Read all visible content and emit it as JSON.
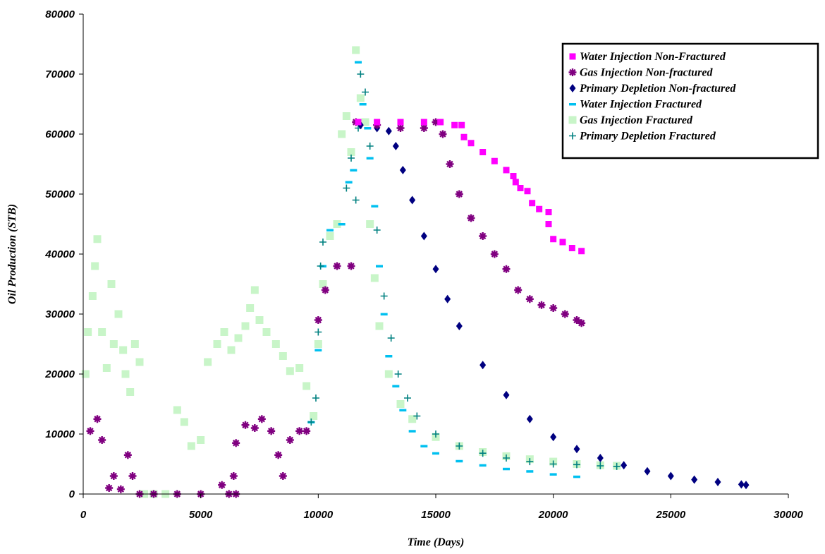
{
  "chart_data": {
    "type": "scatter",
    "title": "",
    "xlabel": "Time (Days)",
    "ylabel": "Oil Production (STB)",
    "xlim": [
      0,
      30000
    ],
    "ylim": [
      0,
      80000
    ],
    "xticks": [
      "0",
      "5000",
      "10000",
      "15000",
      "20000",
      "25000",
      "30000"
    ],
    "yticks": [
      "0",
      "10000",
      "20000",
      "30000",
      "40000",
      "50000",
      "60000",
      "70000",
      "80000"
    ],
    "grid": false,
    "legend_position": "top-right",
    "series": [
      {
        "name": "Water Injection Non-Fractured",
        "marker": "square",
        "color": "#ff00ff",
        "points": [
          [
            11700,
            62000
          ],
          [
            12500,
            62000
          ],
          [
            13500,
            62000
          ],
          [
            14500,
            62000
          ],
          [
            15200,
            62000
          ],
          [
            15800,
            61500
          ],
          [
            16100,
            61500
          ],
          [
            16200,
            59500
          ],
          [
            16500,
            58500
          ],
          [
            17000,
            57000
          ],
          [
            17500,
            55500
          ],
          [
            18000,
            54000
          ],
          [
            18300,
            53000
          ],
          [
            18400,
            52000
          ],
          [
            18600,
            51000
          ],
          [
            18900,
            50500
          ],
          [
            19100,
            48500
          ],
          [
            19400,
            47500
          ],
          [
            19800,
            47000
          ],
          [
            19800,
            45000
          ],
          [
            20000,
            42500
          ],
          [
            20400,
            42000
          ],
          [
            20800,
            41000
          ],
          [
            21200,
            40500
          ]
        ]
      },
      {
        "name": "Gas Injection Non-fractured",
        "marker": "star",
        "color": "#800080",
        "points": [
          [
            300,
            10500
          ],
          [
            600,
            12500
          ],
          [
            800,
            9000
          ],
          [
            1100,
            1000
          ],
          [
            1300,
            3000
          ],
          [
            1600,
            800
          ],
          [
            1900,
            6500
          ],
          [
            2100,
            3000
          ],
          [
            2400,
            0
          ],
          [
            3000,
            0
          ],
          [
            4000,
            0
          ],
          [
            5000,
            0
          ],
          [
            5900,
            1500
          ],
          [
            6200,
            0
          ],
          [
            6500,
            0
          ],
          [
            6400,
            3000
          ],
          [
            6500,
            8500
          ],
          [
            6900,
            11500
          ],
          [
            7300,
            11000
          ],
          [
            7600,
            12500
          ],
          [
            8000,
            10500
          ],
          [
            8300,
            6500
          ],
          [
            8500,
            3000
          ],
          [
            8800,
            9000
          ],
          [
            9200,
            10500
          ],
          [
            9500,
            10500
          ],
          [
            10000,
            29000
          ],
          [
            10300,
            34000
          ],
          [
            10800,
            38000
          ],
          [
            11400,
            38000
          ],
          [
            11600,
            62000
          ],
          [
            12500,
            61500
          ],
          [
            13500,
            61000
          ],
          [
            14500,
            61000
          ],
          [
            15000,
            62000
          ],
          [
            15300,
            60000
          ],
          [
            15600,
            55000
          ],
          [
            16000,
            50000
          ],
          [
            16500,
            46000
          ],
          [
            17000,
            43000
          ],
          [
            17500,
            40000
          ],
          [
            18000,
            37500
          ],
          [
            18500,
            34000
          ],
          [
            19000,
            32500
          ],
          [
            19500,
            31500
          ],
          [
            20000,
            31000
          ],
          [
            20500,
            30000
          ],
          [
            21000,
            29000
          ],
          [
            21200,
            28500
          ]
        ]
      },
      {
        "name": "Primary Depletion Non-fractured",
        "marker": "diamond",
        "color": "#000080",
        "points": [
          [
            11800,
            61500
          ],
          [
            12500,
            61000
          ],
          [
            13000,
            60500
          ],
          [
            13300,
            58000
          ],
          [
            13600,
            54000
          ],
          [
            14000,
            49000
          ],
          [
            14500,
            43000
          ],
          [
            15000,
            37500
          ],
          [
            15500,
            32500
          ],
          [
            16000,
            28000
          ],
          [
            17000,
            21500
          ],
          [
            18000,
            16500
          ],
          [
            19000,
            12500
          ],
          [
            20000,
            9500
          ],
          [
            21000,
            7500
          ],
          [
            22000,
            6000
          ],
          [
            23000,
            4800
          ],
          [
            24000,
            3800
          ],
          [
            25000,
            3000
          ],
          [
            26000,
            2400
          ],
          [
            27000,
            2000
          ],
          [
            28000,
            1600
          ],
          [
            28200,
            1500
          ]
        ]
      },
      {
        "name": "Water Injection Fractured",
        "marker": "dash",
        "color": "#00c0f0",
        "points": [
          [
            9700,
            12000
          ],
          [
            10000,
            24000
          ],
          [
            10200,
            38000
          ],
          [
            10500,
            44000
          ],
          [
            11000,
            45000
          ],
          [
            11300,
            52000
          ],
          [
            11500,
            54000
          ],
          [
            11700,
            72000
          ],
          [
            11900,
            65000
          ],
          [
            12100,
            61000
          ],
          [
            12200,
            56000
          ],
          [
            12400,
            48000
          ],
          [
            12600,
            38000
          ],
          [
            12800,
            30000
          ],
          [
            13000,
            23000
          ],
          [
            13300,
            18000
          ],
          [
            13600,
            14000
          ],
          [
            14000,
            10500
          ],
          [
            14500,
            8000
          ],
          [
            15000,
            6800
          ],
          [
            16000,
            5500
          ],
          [
            17000,
            4800
          ],
          [
            18000,
            4200
          ],
          [
            19000,
            3800
          ],
          [
            20000,
            3300
          ],
          [
            21000,
            2900
          ]
        ]
      },
      {
        "name": "Gas Injection Fractured",
        "marker": "square",
        "color": "#c8f5c8",
        "points": [
          [
            100,
            20000
          ],
          [
            200,
            27000
          ],
          [
            400,
            33000
          ],
          [
            500,
            38000
          ],
          [
            600,
            42500
          ],
          [
            800,
            27000
          ],
          [
            1000,
            21000
          ],
          [
            1200,
            35000
          ],
          [
            1300,
            25000
          ],
          [
            1500,
            30000
          ],
          [
            1700,
            24000
          ],
          [
            1800,
            20000
          ],
          [
            2000,
            17000
          ],
          [
            2200,
            25000
          ],
          [
            2400,
            22000
          ],
          [
            2600,
            0
          ],
          [
            3000,
            0
          ],
          [
            3500,
            0
          ],
          [
            4000,
            14000
          ],
          [
            4300,
            12000
          ],
          [
            4600,
            8000
          ],
          [
            5000,
            9000
          ],
          [
            5300,
            22000
          ],
          [
            5700,
            25000
          ],
          [
            6000,
            27000
          ],
          [
            6300,
            24000
          ],
          [
            6600,
            26000
          ],
          [
            6900,
            28000
          ],
          [
            7100,
            31000
          ],
          [
            7300,
            34000
          ],
          [
            7500,
            29000
          ],
          [
            7800,
            27000
          ],
          [
            8200,
            25000
          ],
          [
            8500,
            23000
          ],
          [
            8800,
            20500
          ],
          [
            9200,
            21000
          ],
          [
            9500,
            18000
          ],
          [
            9800,
            13000
          ],
          [
            10000,
            25000
          ],
          [
            10200,
            35000
          ],
          [
            10500,
            43000
          ],
          [
            10800,
            45000
          ],
          [
            11000,
            60000
          ],
          [
            11200,
            63000
          ],
          [
            11400,
            57000
          ],
          [
            11600,
            74000
          ],
          [
            11800,
            66000
          ],
          [
            12000,
            62000
          ],
          [
            12200,
            45000
          ],
          [
            12400,
            36000
          ],
          [
            12600,
            28000
          ],
          [
            13000,
            20000
          ],
          [
            13500,
            15000
          ],
          [
            14000,
            12500
          ],
          [
            15000,
            9500
          ],
          [
            16000,
            8000
          ],
          [
            17000,
            7000
          ],
          [
            18000,
            6300
          ],
          [
            19000,
            5800
          ],
          [
            20000,
            5400
          ],
          [
            21000,
            5000
          ],
          [
            22000,
            4800
          ],
          [
            22700,
            4700
          ]
        ]
      },
      {
        "name": "Primary Depletion Fractured",
        "marker": "plus",
        "color": "#008080",
        "points": [
          [
            9700,
            12000
          ],
          [
            9900,
            16000
          ],
          [
            10000,
            27000
          ],
          [
            10100,
            38000
          ],
          [
            10200,
            42000
          ],
          [
            11200,
            51000
          ],
          [
            11400,
            56000
          ],
          [
            11600,
            49000
          ],
          [
            11700,
            61000
          ],
          [
            11800,
            70000
          ],
          [
            12000,
            67000
          ],
          [
            12200,
            58000
          ],
          [
            12500,
            44000
          ],
          [
            12800,
            33000
          ],
          [
            13100,
            26000
          ],
          [
            13400,
            20000
          ],
          [
            13800,
            16000
          ],
          [
            14200,
            13000
          ],
          [
            15000,
            10000
          ],
          [
            16000,
            8000
          ],
          [
            17000,
            6800
          ],
          [
            18000,
            6000
          ],
          [
            19000,
            5400
          ],
          [
            20000,
            5000
          ],
          [
            21000,
            4900
          ],
          [
            22000,
            4700
          ],
          [
            22700,
            4600
          ]
        ]
      }
    ]
  }
}
